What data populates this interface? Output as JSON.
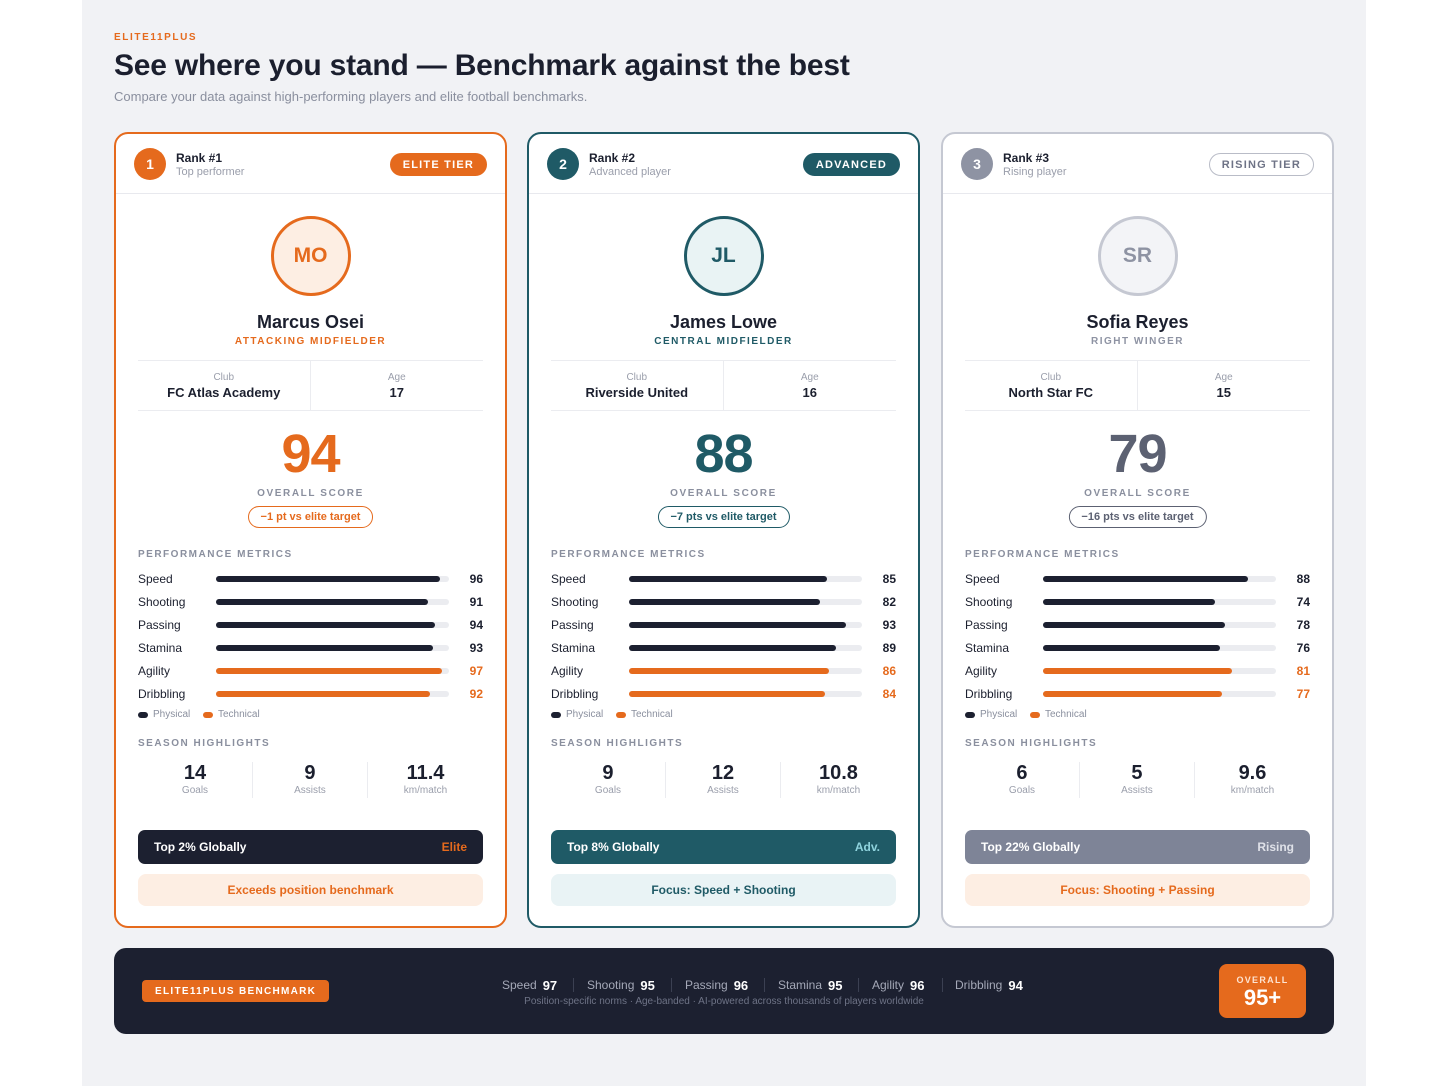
{
  "header": {
    "brand": "ELITE11PLUS",
    "title": "See where you stand — Benchmark against the best",
    "subtitle": "Compare your data against high-performing players and elite football benchmarks."
  },
  "labels": {
    "club": "Club",
    "age": "Age",
    "overall_score": "OVERALL SCORE",
    "performance_metrics": "PERFORMANCE METRICS",
    "season_highlights": "SEASON HIGHLIGHTS",
    "legend_physical": "Physical",
    "legend_technical": "Technical",
    "goals": "Goals",
    "assists": "Assists",
    "km_match": "km/match"
  },
  "colors": {
    "orange": "#e56a1d",
    "navy": "#1c2030",
    "teal": "#1f5a66",
    "gray": "#7e8497",
    "track": "#ebecf0"
  },
  "cards": [
    {
      "rank_num": "1",
      "rank_title": "Rank #1",
      "rank_sub": "Top performer",
      "tier": "ELITE TIER",
      "initials": "MO",
      "name": "Marcus Osei",
      "position": "ATTACKING MIDFIELDER",
      "club": "FC Atlas Academy",
      "age": "17",
      "score": "94",
      "delta": "−1 pt vs elite target",
      "metrics": [
        {
          "name": "Speed",
          "value": 96,
          "type": "physical"
        },
        {
          "name": "Shooting",
          "value": 91,
          "type": "physical"
        },
        {
          "name": "Passing",
          "value": 94,
          "type": "physical"
        },
        {
          "name": "Stamina",
          "value": 93,
          "type": "physical"
        },
        {
          "name": "Agility",
          "value": 97,
          "type": "technical"
        },
        {
          "name": "Dribbling",
          "value": 92,
          "type": "technical"
        }
      ],
      "highlights": {
        "goals": "14",
        "assists": "9",
        "km": "11.4"
      },
      "global": "Top 2% Globally",
      "global_tag": "Elite",
      "focus": "Exceeds position benchmark"
    },
    {
      "rank_num": "2",
      "rank_title": "Rank #2",
      "rank_sub": "Advanced player",
      "tier": "ADVANCED",
      "initials": "JL",
      "name": "James Lowe",
      "position": "CENTRAL MIDFIELDER",
      "club": "Riverside United",
      "age": "16",
      "score": "88",
      "delta": "−7 pts vs elite target",
      "metrics": [
        {
          "name": "Speed",
          "value": 85,
          "type": "physical"
        },
        {
          "name": "Shooting",
          "value": 82,
          "type": "physical"
        },
        {
          "name": "Passing",
          "value": 93,
          "type": "physical"
        },
        {
          "name": "Stamina",
          "value": 89,
          "type": "physical"
        },
        {
          "name": "Agility",
          "value": 86,
          "type": "technical"
        },
        {
          "name": "Dribbling",
          "value": 84,
          "type": "technical"
        }
      ],
      "highlights": {
        "goals": "9",
        "assists": "12",
        "km": "10.8"
      },
      "global": "Top 8% Globally",
      "global_tag": "Adv.",
      "focus": "Focus: Speed + Shooting"
    },
    {
      "rank_num": "3",
      "rank_title": "Rank #3",
      "rank_sub": "Rising player",
      "tier": "RISING TIER",
      "initials": "SR",
      "name": "Sofia Reyes",
      "position": "RIGHT WINGER",
      "club": "North Star FC",
      "age": "15",
      "score": "79",
      "delta": "−16 pts vs elite target",
      "metrics": [
        {
          "name": "Speed",
          "value": 88,
          "type": "physical"
        },
        {
          "name": "Shooting",
          "value": 74,
          "type": "physical"
        },
        {
          "name": "Passing",
          "value": 78,
          "type": "physical"
        },
        {
          "name": "Stamina",
          "value": 76,
          "type": "physical"
        },
        {
          "name": "Agility",
          "value": 81,
          "type": "technical"
        },
        {
          "name": "Dribbling",
          "value": 77,
          "type": "technical"
        }
      ],
      "highlights": {
        "goals": "6",
        "assists": "5",
        "km": "9.6"
      },
      "global": "Top 22% Globally",
      "global_tag": "Rising",
      "focus": "Focus: Shooting + Passing"
    }
  ],
  "footer": {
    "badge": "ELITE11PLUS BENCHMARK",
    "stats": [
      {
        "name": "Speed",
        "value": "97"
      },
      {
        "name": "Shooting",
        "value": "95"
      },
      {
        "name": "Passing",
        "value": "96"
      },
      {
        "name": "Stamina",
        "value": "95"
      },
      {
        "name": "Agility",
        "value": "96"
      },
      {
        "name": "Dribbling",
        "value": "94"
      }
    ],
    "note": "Position-specific norms · Age-banded · AI-powered across thousands of players worldwide",
    "overall_label": "OVERALL",
    "overall_value": "95+"
  }
}
